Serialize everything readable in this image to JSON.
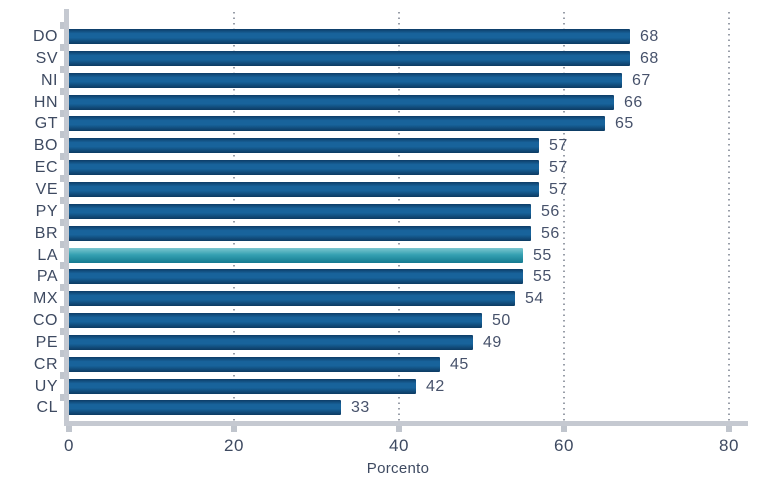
{
  "chart_data": {
    "type": "bar",
    "orientation": "horizontal",
    "title": "",
    "xlabel": "Porcento",
    "ylabel": "",
    "xlim": [
      0,
      82
    ],
    "xticks": [
      0,
      20,
      40,
      60,
      80
    ],
    "grid": "dotted-vertical-at-xticks",
    "legend": "none",
    "categories": [
      "DO",
      "SV",
      "NI",
      "HN",
      "GT",
      "BO",
      "EC",
      "VE",
      "PY",
      "BR",
      "LA",
      "PA",
      "MX",
      "CO",
      "PE",
      "CR",
      "UY",
      "CL"
    ],
    "values": [
      68,
      68,
      67,
      66,
      65,
      57,
      57,
      57,
      56,
      56,
      55,
      55,
      54,
      50,
      49,
      45,
      42,
      33
    ],
    "highlighted_category": "LA",
    "colors": {
      "bar_top": "#0d3c66",
      "bar_mid": "#18639b",
      "bar_bottom": "#0c3a62",
      "highlight_top": "#7cc7d0",
      "highlight_mid": "#35a1b2",
      "highlight_bottom": "#147a90",
      "text": "#3e4a61",
      "axis": "#c5c9d1",
      "grid_dot": "#868d99"
    }
  }
}
